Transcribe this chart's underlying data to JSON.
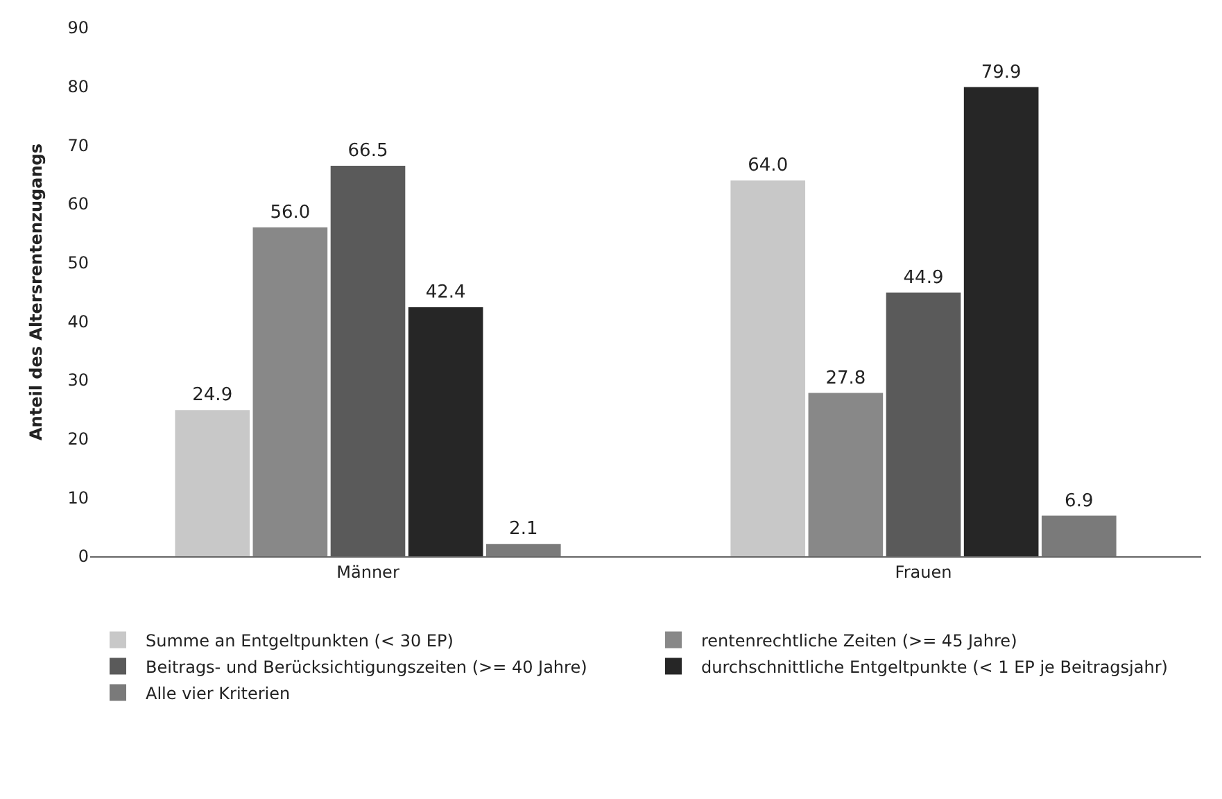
{
  "chart_data": {
    "type": "bar",
    "ylabel": "Anteil des Altersrentenzugangs",
    "categories": [
      "Männer",
      "Frauen"
    ],
    "series": [
      {
        "name": "Summe an Entgeltpunkten (< 30 EP)",
        "color": "#c8c8c8",
        "values": [
          24.9,
          64.0
        ],
        "value_labels": [
          "24.9",
          "64.0"
        ]
      },
      {
        "name": "rentenrechtliche Zeiten (>= 45 Jahre)",
        "color": "#888888",
        "values": [
          56.0,
          27.8
        ],
        "value_labels": [
          "56.0",
          "27.8"
        ]
      },
      {
        "name": "Beitrags- und Berücksichtigungszeiten (>= 40 Jahre)",
        "color": "#5a5a5a",
        "values": [
          66.5,
          44.9
        ],
        "value_labels": [
          "66.5",
          "44.9"
        ]
      },
      {
        "name": "durchschnittliche Entgeltpunkte (< 1 EP je Beitragsjahr)",
        "color": "#262626",
        "values": [
          42.4,
          79.9
        ],
        "value_labels": [
          "42.4",
          "79.9"
        ]
      },
      {
        "name": "Alle vier Kriterien",
        "color": "#7a7a7a",
        "values": [
          2.1,
          6.9
        ],
        "value_labels": [
          "2.1",
          "6.9"
        ]
      }
    ],
    "ylim": [
      0,
      90
    ],
    "yticks": [
      0,
      10,
      20,
      30,
      40,
      50,
      60,
      70,
      80,
      90
    ],
    "legend": "bottom"
  }
}
